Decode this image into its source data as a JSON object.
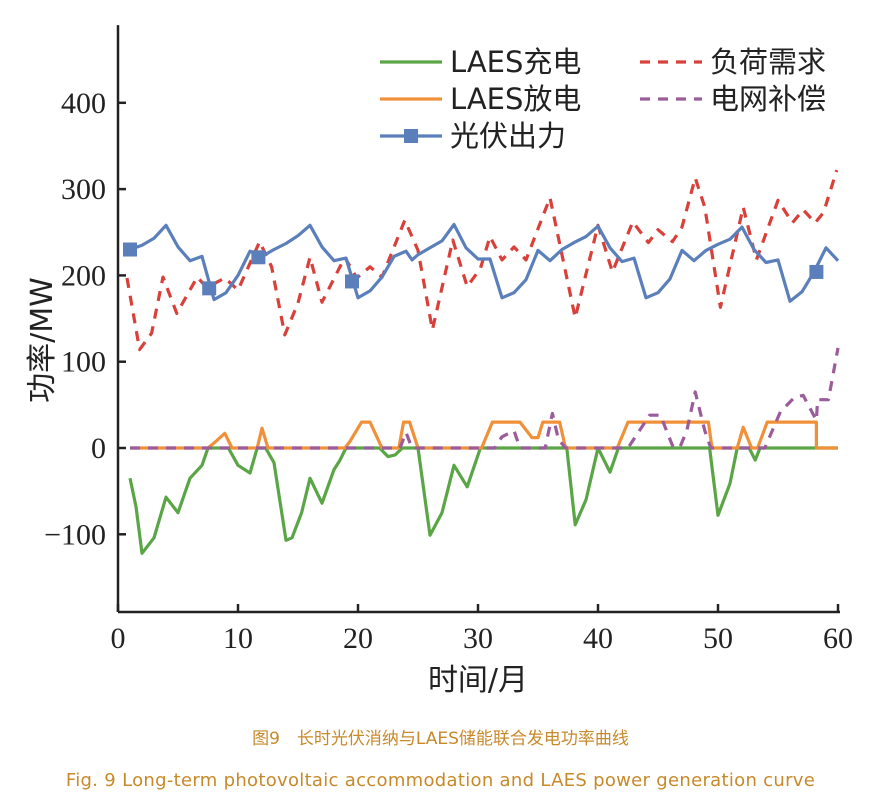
{
  "chart_data": {
    "type": "line",
    "title": "",
    "xlabel": "时间/月",
    "ylabel": "功率/MW",
    "xlim": [
      0,
      60
    ],
    "ylim": [
      -190,
      490
    ],
    "xticks": [
      0,
      10,
      20,
      30,
      40,
      50,
      60
    ],
    "yticks": [
      -100,
      0,
      100,
      200,
      300,
      400
    ],
    "ytick_labels": [
      "−100",
      "0",
      "100",
      "200",
      "300",
      "400"
    ],
    "grid": false,
    "legend_placement": "top",
    "series": [
      {
        "name": "LAES充电",
        "color": "#5aa546",
        "style": "solid",
        "marker": "none",
        "points": [
          [
            1,
            -35
          ],
          [
            1.5,
            -68
          ],
          [
            2,
            -122
          ],
          [
            3,
            -104
          ],
          [
            4,
            -57
          ],
          [
            5,
            -75
          ],
          [
            6,
            -35
          ],
          [
            7,
            -20
          ],
          [
            7.5,
            0
          ],
          [
            9.2,
            0
          ],
          [
            10,
            -20
          ],
          [
            11,
            -29
          ],
          [
            11.6,
            0
          ],
          [
            12.3,
            0
          ],
          [
            13,
            -17
          ],
          [
            14,
            -107
          ],
          [
            14.5,
            -104
          ],
          [
            15.3,
            -75
          ],
          [
            16,
            -35
          ],
          [
            17,
            -64
          ],
          [
            18,
            -25
          ],
          [
            18.5,
            -14
          ],
          [
            19,
            0
          ],
          [
            21.8,
            0
          ],
          [
            22.5,
            -10
          ],
          [
            23.1,
            -8
          ],
          [
            23.7,
            0
          ],
          [
            25,
            0
          ],
          [
            26,
            -101
          ],
          [
            27,
            -75
          ],
          [
            28,
            -20
          ],
          [
            29.1,
            -45
          ],
          [
            30.2,
            0
          ],
          [
            37.4,
            0
          ],
          [
            38.1,
            -89
          ],
          [
            39,
            -60
          ],
          [
            40,
            0
          ],
          [
            41,
            -28
          ],
          [
            41.7,
            0
          ],
          [
            49.3,
            0
          ],
          [
            50,
            -78
          ],
          [
            51,
            -41
          ],
          [
            51.6,
            0
          ],
          [
            52.6,
            0
          ],
          [
            53.1,
            -14
          ],
          [
            53.5,
            0
          ],
          [
            60,
            0
          ]
        ]
      },
      {
        "name": "LAES放电",
        "color": "#f0913a",
        "style": "solid",
        "marker": "none",
        "points": [
          [
            1,
            0
          ],
          [
            7.5,
            0
          ],
          [
            8.1,
            7
          ],
          [
            8.9,
            17
          ],
          [
            9.5,
            0
          ],
          [
            11.6,
            0
          ],
          [
            12,
            23
          ],
          [
            12.5,
            0
          ],
          [
            18.9,
            0
          ],
          [
            19.3,
            7
          ],
          [
            20.3,
            30
          ],
          [
            21,
            30
          ],
          [
            22,
            0
          ],
          [
            23.4,
            0
          ],
          [
            23.8,
            30
          ],
          [
            24.3,
            30
          ],
          [
            25,
            0
          ],
          [
            30.3,
            0
          ],
          [
            31.2,
            30
          ],
          [
            33.5,
            30
          ],
          [
            34.5,
            12
          ],
          [
            35,
            12
          ],
          [
            35.4,
            30
          ],
          [
            36.8,
            30
          ],
          [
            37.3,
            0
          ],
          [
            41.6,
            0
          ],
          [
            42.5,
            30
          ],
          [
            49.2,
            30
          ],
          [
            49.5,
            0
          ],
          [
            51.6,
            0
          ],
          [
            52.1,
            24
          ],
          [
            52.8,
            0
          ],
          [
            53.3,
            0
          ],
          [
            54.1,
            30
          ],
          [
            58.2,
            30
          ],
          [
            58.2,
            0
          ],
          [
            60,
            0
          ]
        ]
      },
      {
        "name": "光伏出力",
        "color": "#5b7fba",
        "style": "solid",
        "marker": "square",
        "points": [
          [
            1,
            230
          ],
          [
            2,
            235
          ],
          [
            3,
            243
          ],
          [
            4,
            258
          ],
          [
            5,
            233
          ],
          [
            6,
            217
          ],
          [
            7,
            222
          ],
          [
            8,
            172
          ],
          [
            9,
            180
          ],
          [
            10,
            200
          ],
          [
            11,
            228
          ],
          [
            12,
            222
          ],
          [
            13,
            230
          ],
          [
            14,
            237
          ],
          [
            15,
            246
          ],
          [
            16,
            258
          ],
          [
            17,
            233
          ],
          [
            18,
            217
          ],
          [
            19,
            220
          ],
          [
            20,
            174
          ],
          [
            21,
            182
          ],
          [
            22,
            198
          ],
          [
            23,
            222
          ],
          [
            24,
            228
          ],
          [
            24.5,
            218
          ],
          [
            25,
            224
          ],
          [
            26,
            232
          ],
          [
            27,
            240
          ],
          [
            28,
            259
          ],
          [
            29,
            232
          ],
          [
            30,
            219
          ],
          [
            31,
            219
          ],
          [
            32,
            174
          ],
          [
            33,
            180
          ],
          [
            34,
            195
          ],
          [
            35,
            229
          ],
          [
            36,
            217
          ],
          [
            37,
            230
          ],
          [
            38,
            238
          ],
          [
            39,
            245
          ],
          [
            40,
            257
          ],
          [
            41,
            232
          ],
          [
            42,
            216
          ],
          [
            43,
            220
          ],
          [
            44,
            174
          ],
          [
            45,
            180
          ],
          [
            46,
            196
          ],
          [
            47,
            229
          ],
          [
            48,
            217
          ],
          [
            49,
            229
          ],
          [
            50,
            236
          ],
          [
            51,
            242
          ],
          [
            52,
            256
          ],
          [
            53,
            230
          ],
          [
            54,
            215
          ],
          [
            55,
            218
          ],
          [
            56,
            170
          ],
          [
            57,
            181
          ],
          [
            58,
            204
          ],
          [
            59,
            232
          ],
          [
            60,
            217
          ]
        ],
        "markers": [
          [
            1,
            230
          ],
          [
            7.6,
            185
          ],
          [
            11.7,
            221
          ],
          [
            19.5,
            193
          ],
          [
            58.2,
            204
          ]
        ]
      },
      {
        "name": "负荷需求",
        "color": "#d9403a",
        "style": "dashed",
        "marker": "none",
        "points": [
          [
            0.75,
            197
          ],
          [
            1.8,
            114
          ],
          [
            2.8,
            133
          ],
          [
            3.75,
            198
          ],
          [
            4.9,
            156
          ],
          [
            6.6,
            198
          ],
          [
            7.4,
            186
          ],
          [
            8.9,
            197
          ],
          [
            10,
            183
          ],
          [
            11.8,
            239
          ],
          [
            12.8,
            210
          ],
          [
            13.9,
            131
          ],
          [
            15,
            168
          ],
          [
            16,
            221
          ],
          [
            17,
            169
          ],
          [
            18.9,
            221
          ],
          [
            19.9,
            197
          ],
          [
            21,
            210
          ],
          [
            22,
            198
          ],
          [
            23.9,
            264
          ],
          [
            25,
            229
          ],
          [
            26.2,
            137
          ],
          [
            27.9,
            241
          ],
          [
            29.1,
            187
          ],
          [
            30.2,
            208
          ],
          [
            31,
            245
          ],
          [
            32,
            218
          ],
          [
            33,
            233
          ],
          [
            34,
            218
          ],
          [
            36,
            290
          ],
          [
            38.1,
            151
          ],
          [
            40,
            258
          ],
          [
            41.2,
            204
          ],
          [
            42.9,
            262
          ],
          [
            44.2,
            238
          ],
          [
            45,
            253
          ],
          [
            46.2,
            239
          ],
          [
            47,
            256
          ],
          [
            48.1,
            313
          ],
          [
            48.9,
            279
          ],
          [
            50.2,
            163
          ],
          [
            52.1,
            279
          ],
          [
            53.2,
            218
          ],
          [
            55,
            287
          ],
          [
            56.2,
            261
          ],
          [
            57.1,
            276
          ],
          [
            58.1,
            261
          ],
          [
            58.8,
            273
          ],
          [
            59.9,
            322
          ]
        ]
      },
      {
        "name": "电网补偿",
        "color": "#9b5c9b",
        "style": "dashed",
        "marker": "none",
        "points": [
          [
            1,
            0
          ],
          [
            23.5,
            0
          ],
          [
            24,
            18
          ],
          [
            24.5,
            0
          ],
          [
            31.4,
            0
          ],
          [
            32,
            13
          ],
          [
            33,
            20
          ],
          [
            33.5,
            0
          ],
          [
            35.6,
            0
          ],
          [
            36.2,
            40
          ],
          [
            36.7,
            10
          ],
          [
            37.3,
            0
          ],
          [
            42.5,
            0
          ],
          [
            44.3,
            38
          ],
          [
            45.2,
            38
          ],
          [
            46.2,
            3
          ],
          [
            46.8,
            0
          ],
          [
            47.4,
            20
          ],
          [
            48.1,
            65
          ],
          [
            48.9,
            20
          ],
          [
            49.4,
            0
          ],
          [
            53.9,
            0
          ],
          [
            55.2,
            42
          ],
          [
            56.4,
            59
          ],
          [
            57.1,
            61
          ],
          [
            58.2,
            32
          ],
          [
            58.3,
            56
          ],
          [
            59.2,
            56
          ],
          [
            60,
            116
          ]
        ]
      }
    ]
  },
  "caption": {
    "cn": "图9　长时光伏消纳与LAES储能联合发电功率曲线",
    "en": "Fig. 9   Long-term photovoltaic accommodation and LAES power generation curve"
  }
}
